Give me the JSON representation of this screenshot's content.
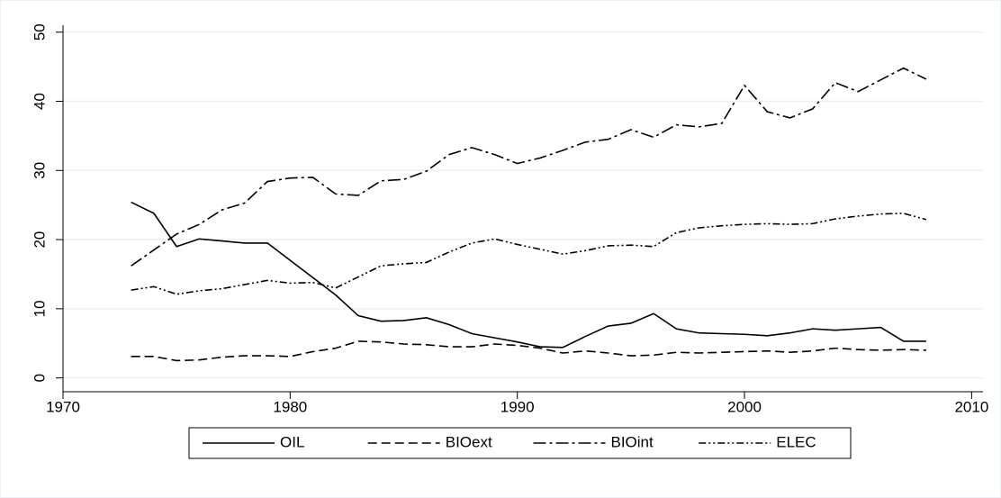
{
  "chart_data": {
    "type": "line",
    "x": [
      1973,
      1974,
      1975,
      1976,
      1977,
      1978,
      1979,
      1980,
      1981,
      1982,
      1983,
      1984,
      1985,
      1986,
      1987,
      1988,
      1989,
      1990,
      1991,
      1992,
      1993,
      1994,
      1995,
      1996,
      1997,
      1998,
      1999,
      2000,
      2001,
      2002,
      2003,
      2004,
      2005,
      2006,
      2007,
      2008
    ],
    "series": [
      {
        "name": "OIL",
        "color": "#000000",
        "dash": "solid",
        "values": [
          25.4,
          23.8,
          19.0,
          20.1,
          19.8,
          19.5,
          19.5,
          17.0,
          14.5,
          12.0,
          9.0,
          8.2,
          8.3,
          8.7,
          7.7,
          6.4,
          5.8,
          5.2,
          4.5,
          4.4,
          6.0,
          7.5,
          7.9,
          9.3,
          7.1,
          6.5,
          6.4,
          6.3,
          6.1,
          6.5,
          7.1,
          6.9,
          7.1,
          7.3,
          5.3,
          5.3
        ]
      },
      {
        "name": "BIOext",
        "color": "#000000",
        "dash": "dashed",
        "values": [
          3.1,
          3.1,
          2.5,
          2.6,
          3.0,
          3.2,
          3.2,
          3.1,
          3.8,
          4.3,
          5.3,
          5.2,
          4.9,
          4.8,
          4.5,
          4.5,
          4.9,
          4.7,
          4.3,
          3.6,
          3.9,
          3.6,
          3.2,
          3.3,
          3.7,
          3.6,
          3.7,
          3.8,
          3.9,
          3.7,
          3.9,
          4.3,
          4.1,
          4.0,
          4.1,
          4.0
        ]
      },
      {
        "name": "BIOint",
        "color": "#000000",
        "dash": "dashdot",
        "values": [
          16.2,
          18.5,
          20.8,
          22.2,
          24.3,
          25.3,
          28.4,
          28.9,
          29.0,
          26.6,
          26.4,
          28.5,
          28.7,
          29.9,
          32.3,
          33.3,
          32.3,
          31.0,
          31.8,
          32.9,
          34.1,
          34.5,
          35.9,
          34.8,
          36.6,
          36.3,
          36.8,
          42.3,
          38.5,
          37.6,
          38.9,
          42.7,
          41.4,
          43.1,
          44.8,
          43.2
        ]
      },
      {
        "name": "ELEC",
        "color": "#000000",
        "dash": "dashdotdot",
        "values": [
          12.7,
          13.2,
          12.1,
          12.6,
          12.9,
          13.5,
          14.1,
          13.7,
          13.8,
          13.0,
          14.6,
          16.2,
          16.5,
          16.7,
          18.2,
          19.5,
          20.1,
          19.3,
          18.6,
          17.9,
          18.4,
          19.1,
          19.2,
          19.0,
          21.0,
          21.7,
          22.0,
          22.2,
          22.3,
          22.2,
          22.3,
          23.0,
          23.4,
          23.7,
          23.8,
          22.9
        ]
      }
    ],
    "xlim": [
      1970,
      2010.5
    ],
    "xticks": [
      1970,
      1980,
      1990,
      2000,
      2010
    ],
    "ylim": [
      -2,
      51
    ],
    "yticks": [
      0,
      10,
      20,
      30,
      40,
      50
    ],
    "grid": true,
    "legend": "bottom"
  }
}
